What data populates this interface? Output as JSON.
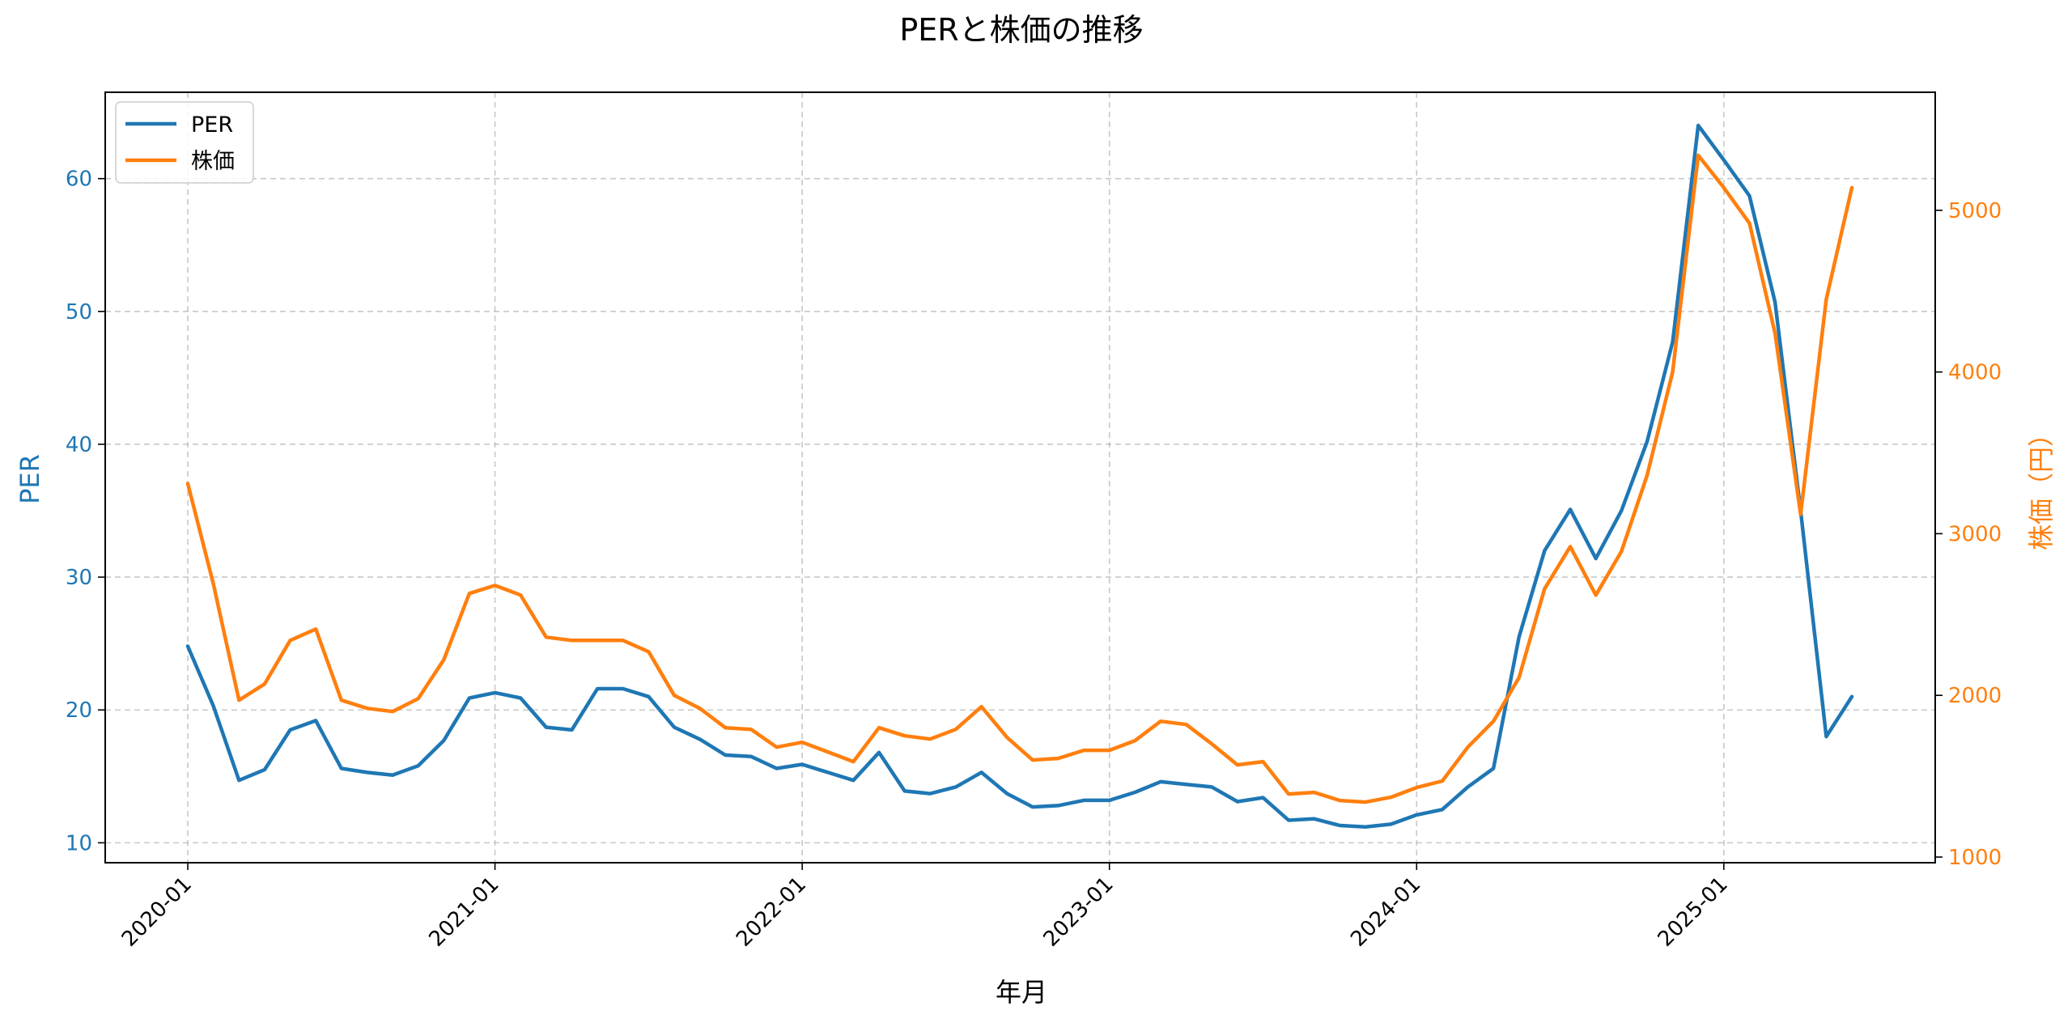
{
  "chart_data": {
    "type": "line",
    "title": "PERと株価の推移",
    "xlabel": "年月",
    "ylabel_left": "PER",
    "ylabel_right": "株価（円）",
    "grid": true,
    "legend_position": "top-left",
    "x_ticks": [
      "2020-01",
      "2021-01",
      "2022-01",
      "2023-01",
      "2024-01",
      "2025-01"
    ],
    "y_left_ticks": [
      "10",
      "20",
      "30",
      "40",
      "50",
      "60"
    ],
    "y_right_ticks": [
      "1000",
      "2000",
      "3000",
      "4000",
      "5000"
    ],
    "ylim_left": [
      8.5,
      66.5
    ],
    "ylim_right": [
      965,
      5730
    ],
    "x": [
      "2020-01",
      "2020-02",
      "2020-03",
      "2020-04",
      "2020-05",
      "2020-06",
      "2020-07",
      "2020-08",
      "2020-09",
      "2020-10",
      "2020-11",
      "2020-12",
      "2021-01",
      "2021-02",
      "2021-03",
      "2021-04",
      "2021-05",
      "2021-06",
      "2021-07",
      "2021-08",
      "2021-09",
      "2021-10",
      "2021-11",
      "2021-12",
      "2022-01",
      "2022-02",
      "2022-03",
      "2022-04",
      "2022-05",
      "2022-06",
      "2022-07",
      "2022-08",
      "2022-09",
      "2022-10",
      "2022-11",
      "2022-12",
      "2023-01",
      "2023-02",
      "2023-03",
      "2023-04",
      "2023-05",
      "2023-06",
      "2023-07",
      "2023-08",
      "2023-09",
      "2023-10",
      "2023-11",
      "2023-12",
      "2024-01",
      "2024-02",
      "2024-03",
      "2024-04",
      "2024-05",
      "2024-06",
      "2024-07",
      "2024-08",
      "2024-09",
      "2024-10",
      "2024-11",
      "2024-12",
      "2025-01",
      "2025-02",
      "2025-03",
      "2025-04",
      "2025-05",
      "2025-06"
    ],
    "series": [
      {
        "name": "PER",
        "axis": "left",
        "color": "#1f77b4",
        "values": [
          24.8,
          20.3,
          14.7,
          15.5,
          18.5,
          19.2,
          15.6,
          15.3,
          15.1,
          15.8,
          17.7,
          20.9,
          21.3,
          20.9,
          18.7,
          18.5,
          21.6,
          21.6,
          21.0,
          18.7,
          17.8,
          16.6,
          16.5,
          15.6,
          15.9,
          15.3,
          14.7,
          16.8,
          13.9,
          13.7,
          14.2,
          15.3,
          13.7,
          12.7,
          12.8,
          13.2,
          13.2,
          13.8,
          14.6,
          14.4,
          14.2,
          13.1,
          13.4,
          11.7,
          11.8,
          11.3,
          11.2,
          11.4,
          12.1,
          12.5,
          14.2,
          15.6,
          25.5,
          32.0,
          35.1,
          31.4,
          35.0,
          40.2,
          47.7,
          64.0,
          61.4,
          58.7,
          50.7,
          35.0,
          18.0,
          21.0
        ]
      },
      {
        "name": "株価",
        "axis": "right",
        "color": "#ff7f0e",
        "values": [
          3310,
          2690,
          1970,
          2070,
          2340,
          2410,
          1970,
          1920,
          1900,
          1980,
          2220,
          2630,
          2680,
          2620,
          2360,
          2340,
          2340,
          2340,
          2270,
          2000,
          1920,
          1800,
          1790,
          1680,
          1710,
          1650,
          1590,
          1800,
          1750,
          1730,
          1790,
          1930,
          1740,
          1600,
          1610,
          1660,
          1660,
          1720,
          1840,
          1820,
          1700,
          1570,
          1590,
          1390,
          1400,
          1350,
          1340,
          1370,
          1430,
          1470,
          1680,
          1840,
          2110,
          2660,
          2920,
          2620,
          2890,
          3360,
          4000,
          5340,
          5140,
          4920,
          4240,
          3120,
          4450,
          5140
        ]
      }
    ]
  }
}
